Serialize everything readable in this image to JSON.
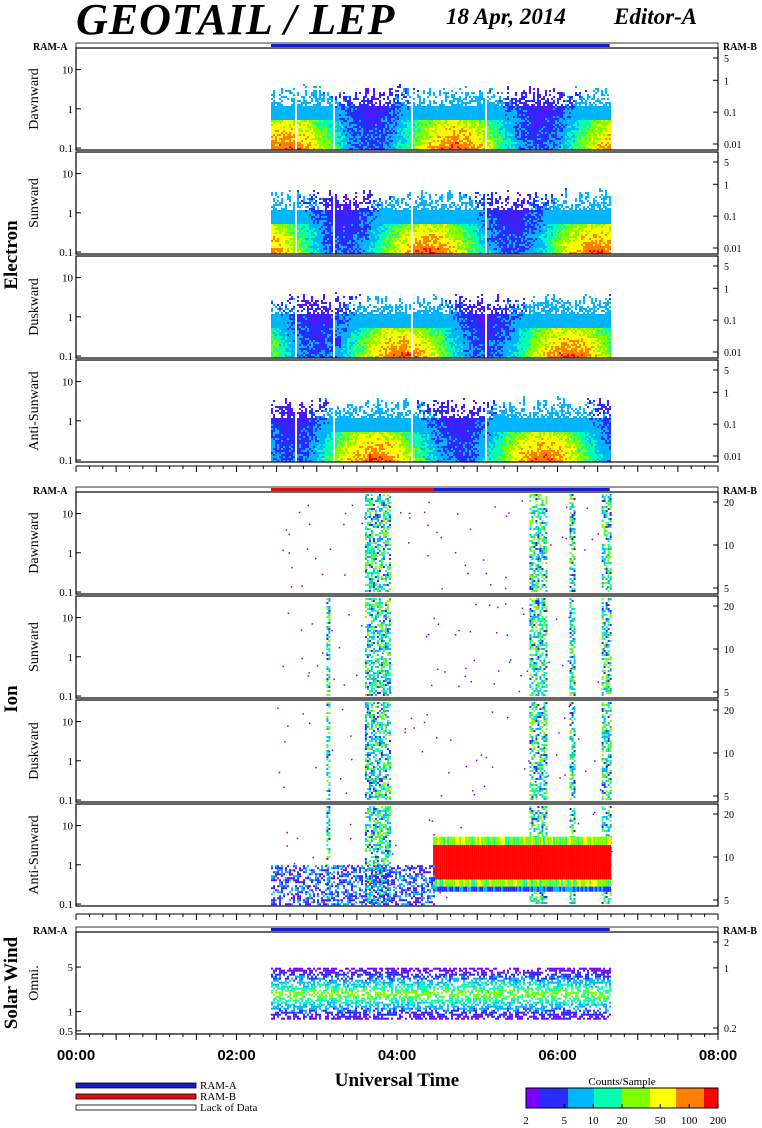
{
  "header": {
    "title": "GEOTAIL / LEP",
    "date": "18 Apr, 2014",
    "editor": "Editor-A"
  },
  "ram_labels": {
    "left": "RAM-A",
    "right": "RAM-B"
  },
  "chart_data": {
    "type": "heatmap",
    "xlabel": "Universal Time",
    "x_ticks": [
      "00:00",
      "02:00",
      "04:00",
      "06:00",
      "08:00"
    ],
    "xlim_hours": [
      0,
      8
    ],
    "data_coverage_hours": [
      2.43,
      6.65
    ],
    "groups": [
      {
        "name": "Electron",
        "ram_bar": [
          {
            "start": 0.0,
            "end": 2.43,
            "state": "Lack of Data"
          },
          {
            "start": 2.43,
            "end": 6.65,
            "state": "RAM-A"
          },
          {
            "start": 6.65,
            "end": 8.0,
            "state": "Lack of Data"
          }
        ],
        "panels": [
          {
            "label": "Dawnward",
            "left_ticks": [
              "10",
              "1",
              "0.1"
            ],
            "right_ticks": [
              "5",
              "1",
              "0.1",
              "0.01"
            ]
          },
          {
            "label": "Sunward",
            "left_ticks": [
              "10",
              "1",
              "0.1"
            ],
            "right_ticks": [
              "5",
              "1",
              "0.1",
              "0.01"
            ]
          },
          {
            "label": "Duskward",
            "left_ticks": [
              "10",
              "1",
              "0.1"
            ],
            "right_ticks": [
              "5",
              "1",
              "0.1",
              "0.01"
            ]
          },
          {
            "label": "Anti-Sunward",
            "left_ticks": [
              "10",
              "1",
              "0.1"
            ],
            "right_ticks": [
              "5",
              "1",
              "0.1",
              "0.01"
            ]
          }
        ]
      },
      {
        "name": "Ion",
        "ram_bar": [
          {
            "start": 0.0,
            "end": 2.43,
            "state": "Lack of Data"
          },
          {
            "start": 2.43,
            "end": 4.45,
            "state": "RAM-B"
          },
          {
            "start": 4.45,
            "end": 6.65,
            "state": "RAM-A"
          },
          {
            "start": 6.65,
            "end": 8.0,
            "state": "Lack of Data"
          }
        ],
        "panels": [
          {
            "label": "Dawnward",
            "left_ticks": [
              "10",
              "1",
              "0.1"
            ],
            "right_ticks": [
              "20",
              "10",
              "5"
            ]
          },
          {
            "label": "Sunward",
            "left_ticks": [
              "10",
              "1",
              "0.1"
            ],
            "right_ticks": [
              "20",
              "10",
              "5"
            ]
          },
          {
            "label": "Duskward",
            "left_ticks": [
              "10",
              "1",
              "0.1"
            ],
            "right_ticks": [
              "20",
              "10",
              "5"
            ]
          },
          {
            "label": "Anti-Sunward",
            "left_ticks": [
              "10",
              "1",
              "0.1"
            ],
            "right_ticks": [
              "20",
              "10",
              "5"
            ]
          }
        ]
      },
      {
        "name": "Solar Wind",
        "ram_bar": [
          {
            "start": 0.0,
            "end": 2.43,
            "state": "Lack of Data"
          },
          {
            "start": 2.43,
            "end": 6.65,
            "state": "RAM-A"
          },
          {
            "start": 6.65,
            "end": 8.0,
            "state": "Lack of Data"
          }
        ],
        "panels": [
          {
            "label": "Omni.",
            "left_ticks": [
              "5",
              "1",
              "0.5"
            ],
            "right_ticks": [
              "2",
              "1",
              "0.2"
            ]
          }
        ]
      }
    ],
    "legend": {
      "items": [
        "RAM-A",
        "RAM-B",
        "Lack of Data"
      ],
      "colors": {
        "RAM-A": "#1a1ad0",
        "RAM-B": "#e01010",
        "Lack of Data": "#ffffff"
      }
    },
    "colorbar": {
      "title": "Counts/Sample",
      "ticks": [
        "2",
        "5",
        "10",
        "20",
        "50",
        "100",
        "200"
      ],
      "colors": [
        "#7a00ff",
        "#2a2aff",
        "#00b4ff",
        "#00ffb0",
        "#80ff00",
        "#ffff00",
        "#ff8000",
        "#ff0000"
      ]
    }
  }
}
